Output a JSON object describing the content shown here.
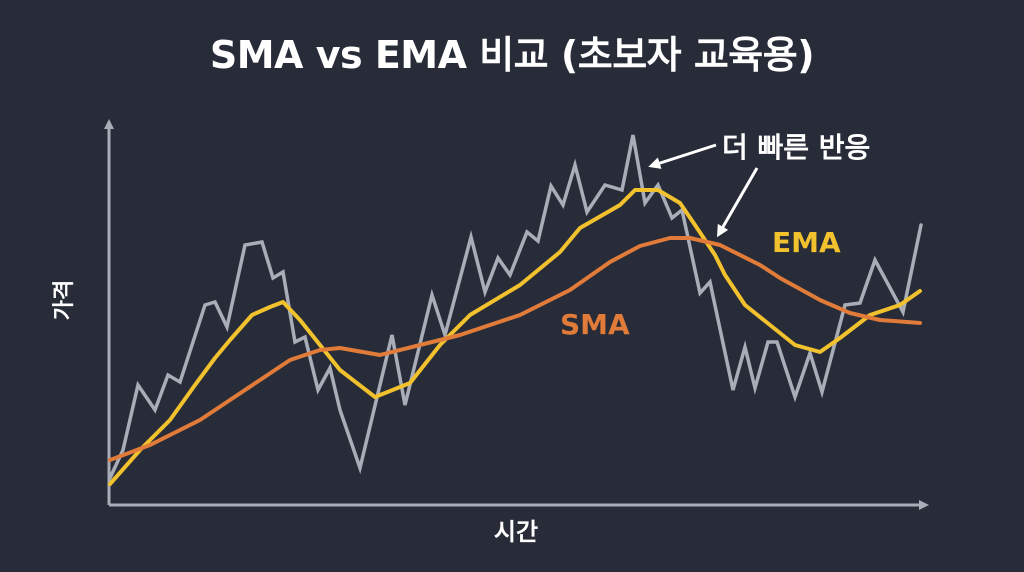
{
  "chart_data": {
    "type": "line",
    "title": "SMA vs EMA 비교 (초보자 교육용)",
    "xlabel": "시간",
    "ylabel": "가격",
    "grid": false,
    "legend_position": "inline",
    "annotations": [
      {
        "text": "더 빠른 반응",
        "points_to": [
          "price",
          "EMA"
        ]
      }
    ],
    "axis": {
      "origin": [
        109,
        505
      ],
      "x_end": [
        930,
        505
      ],
      "y_end": [
        109,
        118
      ],
      "ticks": "none"
    },
    "series": [
      {
        "name": "Price",
        "color": "#a8adb7",
        "label": "",
        "points": [
          [
            110,
            478
          ],
          [
            123,
            450
          ],
          [
            138,
            385
          ],
          [
            155,
            410
          ],
          [
            168,
            375
          ],
          [
            180,
            382
          ],
          [
            205,
            305
          ],
          [
            215,
            302
          ],
          [
            227,
            327
          ],
          [
            245,
            245
          ],
          [
            262,
            242
          ],
          [
            273,
            278
          ],
          [
            283,
            272
          ],
          [
            295,
            342
          ],
          [
            305,
            337
          ],
          [
            318,
            390
          ],
          [
            330,
            368
          ],
          [
            340,
            410
          ],
          [
            360,
            468
          ],
          [
            392,
            335
          ],
          [
            405,
            405
          ],
          [
            432,
            295
          ],
          [
            445,
            335
          ],
          [
            471,
            237
          ],
          [
            485,
            292
          ],
          [
            498,
            258
          ],
          [
            510,
            275
          ],
          [
            527,
            232
          ],
          [
            538,
            241
          ],
          [
            551,
            186
          ],
          [
            563,
            205
          ],
          [
            575,
            165
          ],
          [
            587,
            212
          ],
          [
            605,
            185
          ],
          [
            622,
            190
          ],
          [
            633,
            135
          ],
          [
            645,
            203
          ],
          [
            658,
            185
          ],
          [
            672,
            218
          ],
          [
            682,
            210
          ],
          [
            700,
            293
          ],
          [
            710,
            282
          ],
          [
            733,
            390
          ],
          [
            745,
            347
          ],
          [
            755,
            388
          ],
          [
            768,
            342
          ],
          [
            777,
            342
          ],
          [
            795,
            397
          ],
          [
            810,
            353
          ],
          [
            822,
            392
          ],
          [
            845,
            305
          ],
          [
            860,
            303
          ],
          [
            875,
            260
          ],
          [
            903,
            312
          ],
          [
            921,
            225
          ]
        ]
      },
      {
        "name": "EMA",
        "color": "#f2c12e",
        "label": "EMA",
        "points": [
          [
            110,
            484
          ],
          [
            140,
            450
          ],
          [
            170,
            420
          ],
          [
            195,
            385
          ],
          [
            215,
            358
          ],
          [
            230,
            340
          ],
          [
            252,
            315
          ],
          [
            270,
            307
          ],
          [
            283,
            302
          ],
          [
            300,
            320
          ],
          [
            320,
            345
          ],
          [
            340,
            370
          ],
          [
            375,
            397
          ],
          [
            410,
            383
          ],
          [
            440,
            345
          ],
          [
            470,
            315
          ],
          [
            520,
            285
          ],
          [
            560,
            252
          ],
          [
            580,
            228
          ],
          [
            620,
            205
          ],
          [
            635,
            190
          ],
          [
            658,
            190
          ],
          [
            680,
            203
          ],
          [
            695,
            225
          ],
          [
            715,
            255
          ],
          [
            725,
            275
          ],
          [
            745,
            305
          ],
          [
            770,
            325
          ],
          [
            795,
            345
          ],
          [
            820,
            352
          ],
          [
            840,
            338
          ],
          [
            870,
            315
          ],
          [
            900,
            305
          ],
          [
            920,
            291
          ]
        ]
      },
      {
        "name": "SMA",
        "color": "#e07b39",
        "label": "SMA",
        "points": [
          [
            110,
            460
          ],
          [
            150,
            445
          ],
          [
            200,
            420
          ],
          [
            230,
            400
          ],
          [
            260,
            380
          ],
          [
            290,
            360
          ],
          [
            320,
            350
          ],
          [
            340,
            348
          ],
          [
            380,
            355
          ],
          [
            420,
            345
          ],
          [
            460,
            335
          ],
          [
            520,
            315
          ],
          [
            570,
            290
          ],
          [
            610,
            262
          ],
          [
            640,
            246
          ],
          [
            670,
            238
          ],
          [
            690,
            238
          ],
          [
            720,
            245
          ],
          [
            760,
            265
          ],
          [
            780,
            278
          ],
          [
            820,
            300
          ],
          [
            850,
            313
          ],
          [
            880,
            320
          ],
          [
            920,
            323
          ]
        ]
      }
    ]
  },
  "page": {
    "title": "SMA vs EMA 비교 (초보자 교육용)",
    "x_axis_label": "시간",
    "y_axis_label": "가격",
    "annotation": "더 빠른 반응",
    "ema_label": "EMA",
    "sma_label": "SMA"
  },
  "colors": {
    "background": "#272c38",
    "axis": "#a8adb7",
    "price": "#a8adb7",
    "ema": "#f2c12e",
    "sma": "#e07b39",
    "text": "#ffffff"
  },
  "arrows": [
    {
      "from": [
        716,
        145
      ],
      "to": [
        654,
        165
      ]
    },
    {
      "from": [
        757,
        168
      ],
      "to": [
        720,
        232
      ]
    }
  ]
}
